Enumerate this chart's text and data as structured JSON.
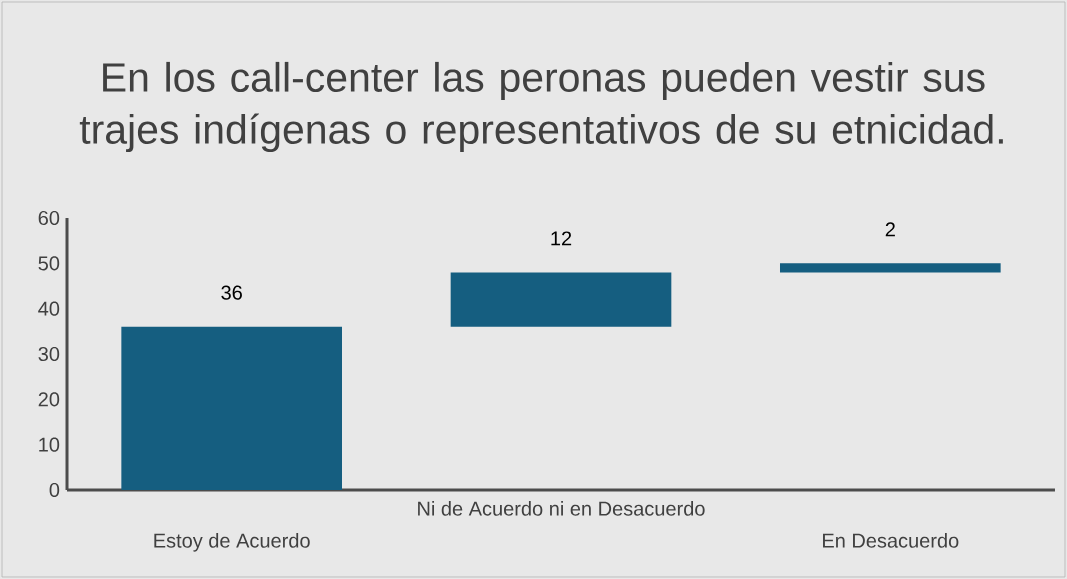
{
  "chart_data": {
    "type": "bar",
    "title": "En los call-center las peronas pueden vestir sus trajes indígenas o representativos de su etnicidad.",
    "categories": [
      "Estoy de Acuerdo",
      "Ni de Acuerdo ni en Desacuerdo",
      "En Desacuerdo"
    ],
    "values": [
      36,
      12,
      2
    ],
    "base": [
      0,
      36,
      48
    ],
    "color": "#155e80",
    "ylim": [
      0,
      60
    ],
    "yticks": [
      0,
      10,
      20,
      30,
      40,
      50,
      60
    ],
    "data_labels": true,
    "grid": false
  }
}
